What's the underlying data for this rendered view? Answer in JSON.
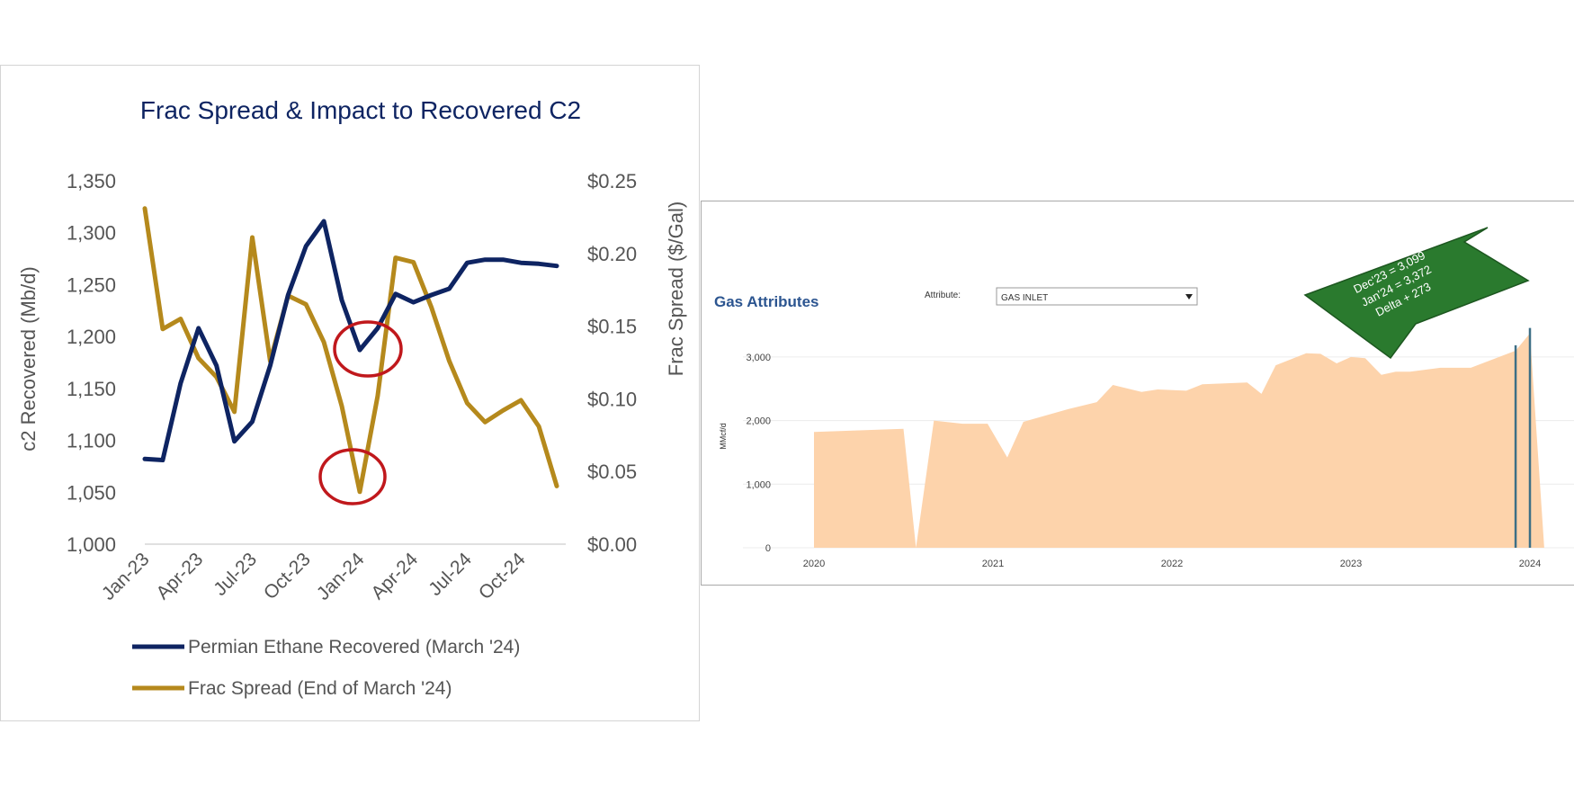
{
  "left_chart": {
    "title": "Frac Spread & Impact to Recovered C2",
    "y_left_label": "c2 Recovered (Mb/d)",
    "y_right_label": "Frac Spread ($/Gal)",
    "y_left_ticks": [
      "1,000",
      "1,050",
      "1,100",
      "1,150",
      "1,200",
      "1,250",
      "1,300",
      "1,350"
    ],
    "y_right_ticks": [
      "$0.00",
      "$0.05",
      "$0.10",
      "$0.15",
      "$0.20",
      "$0.25"
    ],
    "x_ticks": [
      "Jan-23",
      "Apr-23",
      "Jul-23",
      "Oct-23",
      "Jan-24",
      "Apr-24",
      "Jul-24",
      "Oct-24"
    ],
    "legend": [
      {
        "label": "Permian Ethane Recovered (March '24)",
        "color": "#0e2462"
      },
      {
        "label": "Frac Spread (End of March '24)",
        "color": "#b5891c"
      }
    ]
  },
  "right_chart": {
    "title": "Gas Attributes",
    "attribute_label": "Attribute:",
    "attribute_value": "GAS INLET",
    "y_label": "MMcf/d",
    "y_ticks": [
      "0",
      "1,000",
      "2,000",
      "3,000"
    ],
    "x_ticks": [
      "2020",
      "2021",
      "2022",
      "2023",
      "2024"
    ],
    "callout_lines": [
      "Dec'23 = 3,099",
      "Jan'24 = 3,372",
      "Delta + 273"
    ],
    "fill_color": "#fdd3ab",
    "callout_color": "#2a7a2e"
  },
  "chart_data": [
    {
      "type": "line",
      "title": "Frac Spread & Impact to Recovered C2",
      "xlabel": "",
      "ylabel": "c2 Recovered (Mb/d)",
      "y2label": "Frac Spread ($/Gal)",
      "ylim": [
        1000,
        1350
      ],
      "y2lim": [
        0,
        0.25
      ],
      "x": [
        "Jan-23",
        "Feb-23",
        "Mar-23",
        "Apr-23",
        "May-23",
        "Jun-23",
        "Jul-23",
        "Aug-23",
        "Sep-23",
        "Oct-23",
        "Nov-23",
        "Dec-23",
        "Jan-24",
        "Feb-24",
        "Mar-24",
        "Apr-24",
        "May-24",
        "Jun-24",
        "Jul-24",
        "Aug-24",
        "Sep-24",
        "Oct-24",
        "Nov-24",
        "Dec-24"
      ],
      "series": [
        {
          "name": "Permian Ethane Recovered (March '24)",
          "axis": "left",
          "color": "#0e2462",
          "values": [
            1082,
            1081,
            1155,
            1208,
            1172,
            1099,
            1118,
            1172,
            1240,
            1287,
            1311,
            1235,
            1187,
            1208,
            1241,
            1233,
            1240,
            1246,
            1271,
            1274,
            1274,
            1271,
            1270,
            1268
          ]
        },
        {
          "name": "Frac Spread (End of March '24)",
          "axis": "right",
          "color": "#b5891c",
          "values": [
            0.231,
            0.148,
            0.155,
            0.128,
            0.115,
            0.091,
            0.211,
            0.126,
            0.171,
            0.165,
            0.139,
            0.095,
            0.036,
            0.102,
            0.197,
            0.194,
            0.163,
            0.126,
            0.097,
            0.084,
            0.092,
            0.099,
            0.081,
            0.04
          ]
        }
      ],
      "annotations": [
        "circle around Jan-24 recovered dip",
        "circle around Dec-23/Jan-24 frac spread dip"
      ],
      "legend": "bottom"
    },
    {
      "type": "area",
      "title": "Gas Attributes",
      "xlabel": "",
      "ylabel": "MMcf/d",
      "ylim": [
        0,
        3600
      ],
      "xlim": [
        2019.85,
        2024.2
      ],
      "series": [
        {
          "name": "GAS INLET",
          "color": "#fdd3ab",
          "points": [
            [
              2020.0,
              0
            ],
            [
              2020.0,
              1820
            ],
            [
              2020.5,
              1870
            ],
            [
              2020.57,
              0
            ],
            [
              2020.67,
              2000
            ],
            [
              2020.83,
              1950
            ],
            [
              2020.97,
              1950
            ],
            [
              2021.08,
              1420
            ],
            [
              2021.17,
              1980
            ],
            [
              2021.42,
              2180
            ],
            [
              2021.58,
              2290
            ],
            [
              2021.67,
              2560
            ],
            [
              2021.83,
              2450
            ],
            [
              2021.92,
              2490
            ],
            [
              2022.08,
              2470
            ],
            [
              2022.17,
              2570
            ],
            [
              2022.42,
              2600
            ],
            [
              2022.5,
              2420
            ],
            [
              2022.58,
              2870
            ],
            [
              2022.75,
              3060
            ],
            [
              2022.83,
              3050
            ],
            [
              2022.92,
              2900
            ],
            [
              2023.0,
              3000
            ],
            [
              2023.08,
              2980
            ],
            [
              2023.17,
              2720
            ],
            [
              2023.25,
              2770
            ],
            [
              2023.33,
              2770
            ],
            [
              2023.5,
              2830
            ],
            [
              2023.67,
              2830
            ],
            [
              2023.92,
              3099
            ],
            [
              2024.0,
              3372
            ],
            [
              2024.08,
              0
            ]
          ]
        }
      ],
      "annotations": [
        "Dec'23 = 3,099",
        "Jan'24 = 3,372",
        "Delta + 273"
      ]
    }
  ]
}
